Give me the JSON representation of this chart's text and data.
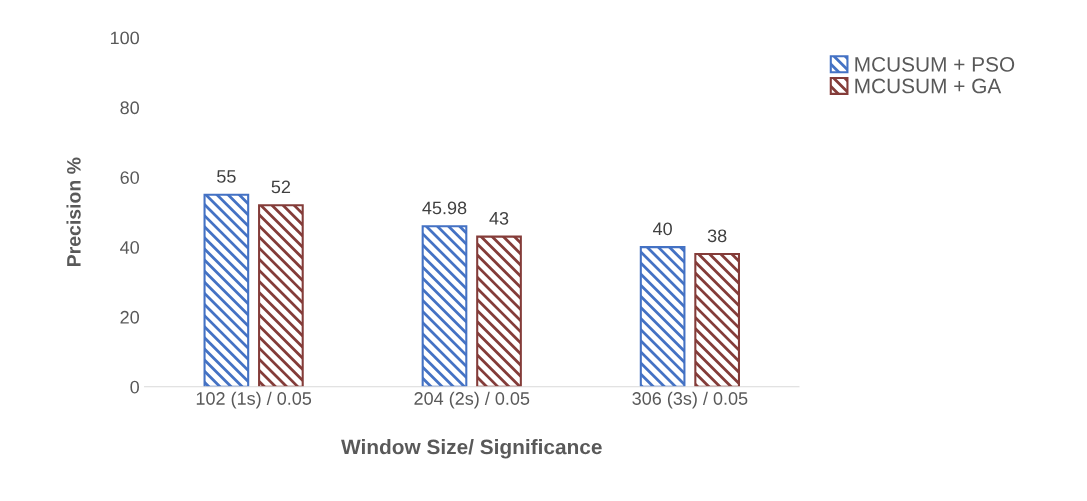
{
  "chart_data": {
    "type": "bar",
    "xlabel": "Window Size/ Significance",
    "ylabel": "Precision %",
    "categories": [
      "102 (1s) / 0.05",
      "204 (2s) / 0.05",
      "306 (3s) / 0.05"
    ],
    "series": [
      {
        "name": "MCUSUM + PSO",
        "color": "#4472c4",
        "values": [
          55,
          45.98,
          40
        ]
      },
      {
        "name": "MCUSUM + GA",
        "color": "#843c39",
        "values": [
          52,
          43,
          38
        ]
      }
    ],
    "ylim": [
      0,
      100
    ],
    "yticks": [
      0,
      20,
      40,
      60,
      80,
      100
    ],
    "grid": false,
    "legend": "top right",
    "data_labels": true
  }
}
